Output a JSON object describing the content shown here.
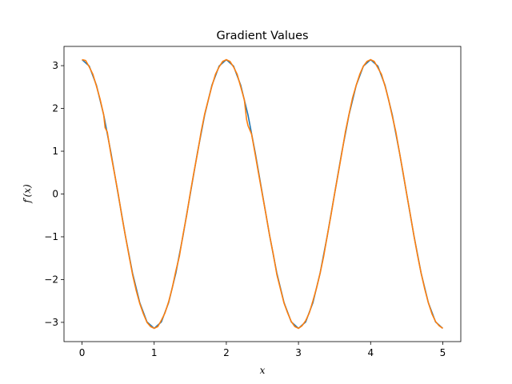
{
  "chart_data": {
    "type": "line",
    "title": "Gradient Values",
    "xlabel": "x",
    "ylabel": "f′(x)",
    "xlim": [
      -0.25,
      5.25
    ],
    "ylim": [
      -3.45,
      3.45
    ],
    "xticks": [
      0,
      1,
      2,
      3,
      4,
      5
    ],
    "yticks": [
      -3,
      -2,
      -1,
      0,
      1,
      2,
      3
    ],
    "grid": false,
    "legend": "none",
    "series": [
      {
        "color": "#1f77b4",
        "x": [
          0,
          0.1,
          0.2,
          0.3,
          0.4,
          0.5,
          0.6,
          0.7,
          0.8,
          0.9,
          1.0,
          1.1,
          1.2,
          1.3,
          1.4,
          1.5,
          1.6,
          1.7,
          1.8,
          1.9,
          2.0,
          2.1,
          2.2,
          2.3,
          2.4,
          2.5,
          2.6,
          2.7,
          2.8,
          2.9,
          3.0,
          3.1,
          3.2,
          3.3,
          3.4,
          3.5,
          3.6,
          3.7,
          3.8,
          3.9,
          4.0,
          4.1,
          4.2,
          4.3,
          4.4,
          4.5,
          4.6,
          4.7,
          4.8,
          4.9,
          5.0
        ],
        "y": [
          3.14,
          2.99,
          2.54,
          1.85,
          0.97,
          0.0,
          -0.97,
          -1.85,
          -2.54,
          -2.99,
          -3.14,
          -2.99,
          -2.54,
          -1.85,
          -0.97,
          0.0,
          0.97,
          1.85,
          2.54,
          2.99,
          3.14,
          2.99,
          2.54,
          1.85,
          0.97,
          0.0,
          -0.97,
          -1.85,
          -2.54,
          -2.99,
          -3.14,
          -2.99,
          -2.54,
          -1.85,
          -0.97,
          0.0,
          0.97,
          1.85,
          2.54,
          2.99,
          3.14,
          2.99,
          2.54,
          1.85,
          0.97,
          0.0,
          -0.97,
          -1.85,
          -2.54,
          -2.99,
          -3.14
        ]
      },
      {
        "color": "#ff7f0e",
        "x": [
          0,
          0.05,
          0.1,
          0.15,
          0.2,
          0.25,
          0.3,
          0.32,
          0.35,
          0.4,
          0.45,
          0.5,
          0.55,
          0.6,
          0.65,
          0.7,
          0.75,
          0.8,
          0.85,
          0.9,
          0.95,
          1.0,
          1.05,
          1.1,
          1.15,
          1.2,
          1.25,
          1.3,
          1.35,
          1.4,
          1.45,
          1.5,
          1.55,
          1.6,
          1.65,
          1.7,
          1.75,
          1.8,
          1.85,
          1.9,
          1.95,
          2.0,
          2.05,
          2.1,
          2.15,
          2.2,
          2.25,
          2.28,
          2.3,
          2.35,
          2.4,
          2.45,
          2.5,
          2.55,
          2.6,
          2.65,
          2.7,
          2.75,
          2.8,
          2.85,
          2.9,
          2.95,
          3.0,
          3.05,
          3.1,
          3.15,
          3.2,
          3.25,
          3.3,
          3.35,
          3.4,
          3.45,
          3.5,
          3.55,
          3.6,
          3.65,
          3.7,
          3.75,
          3.8,
          3.85,
          3.9,
          3.95,
          4.0,
          4.05,
          4.1,
          4.15,
          4.2,
          4.25,
          4.3,
          4.35,
          4.4,
          4.45,
          4.5,
          4.55,
          4.6,
          4.65,
          4.7,
          4.75,
          4.8,
          4.85,
          4.9,
          4.95,
          5.0
        ],
        "y": [
          3.14,
          3.12,
          2.97,
          2.8,
          2.52,
          2.22,
          1.85,
          1.55,
          1.45,
          0.93,
          0.48,
          0.02,
          -0.5,
          -0.97,
          -1.43,
          -1.88,
          -2.25,
          -2.56,
          -2.8,
          -3.0,
          -3.1,
          -3.14,
          -3.1,
          -2.95,
          -2.78,
          -2.52,
          -2.2,
          -1.8,
          -1.45,
          -0.95,
          -0.5,
          0.02,
          0.5,
          0.95,
          1.45,
          1.87,
          2.2,
          2.52,
          2.8,
          2.97,
          3.1,
          3.14,
          3.1,
          2.97,
          2.8,
          2.5,
          2.2,
          1.75,
          1.6,
          1.4,
          0.93,
          0.45,
          -0.02,
          -0.48,
          -0.97,
          -1.4,
          -1.88,
          -2.22,
          -2.55,
          -2.78,
          -2.98,
          -3.1,
          -3.14,
          -3.08,
          -2.96,
          -2.78,
          -2.5,
          -2.2,
          -1.85,
          -1.45,
          -0.97,
          -0.5,
          0.0,
          0.47,
          0.95,
          1.45,
          1.86,
          2.25,
          2.54,
          2.8,
          2.99,
          3.1,
          3.14,
          3.1,
          2.95,
          2.8,
          2.52,
          2.2,
          1.82,
          1.45,
          0.97,
          0.5,
          0.0,
          -0.48,
          -0.97,
          -1.43,
          -1.85,
          -2.22,
          -2.54,
          -2.8,
          -2.98,
          -3.08,
          -3.14
        ]
      }
    ]
  }
}
